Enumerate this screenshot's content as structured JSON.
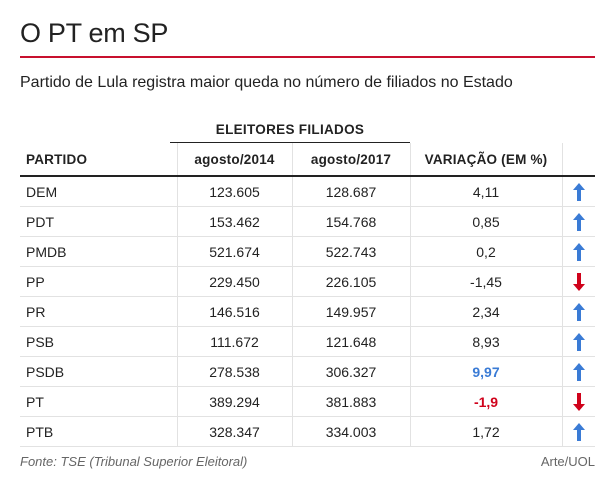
{
  "title": "O PT em SP",
  "subtitle": "Partido de Lula registra maior queda no número de filiados no Estado",
  "group_header": "ELEITORES FILIADOS",
  "columns": {
    "party": "PARTIDO",
    "aug2014": "agosto/2014",
    "aug2017": "agosto/2017",
    "variation": "VARIAÇÃO (EM %)"
  },
  "colors": {
    "accent": "#c8102e",
    "up": "#3a7bd5",
    "down": "#d0021b"
  },
  "chart_data": {
    "type": "table",
    "title": "O PT em SP",
    "subtitle": "Partido de Lula registra maior queda no número de filiados no Estado",
    "columns": [
      "PARTIDO",
      "agosto/2014",
      "agosto/2017",
      "VARIAÇÃO (EM %)"
    ],
    "rows": [
      {
        "party": "DEM",
        "aug2014": "123.605",
        "aug2017": "128.687",
        "variation": "4,11",
        "direction": "up",
        "highlight": ""
      },
      {
        "party": "PDT",
        "aug2014": "153.462",
        "aug2017": "154.768",
        "variation": "0,85",
        "direction": "up",
        "highlight": ""
      },
      {
        "party": "PMDB",
        "aug2014": "521.674",
        "aug2017": "522.743",
        "variation": "0,2",
        "direction": "up",
        "highlight": ""
      },
      {
        "party": "PP",
        "aug2014": "229.450",
        "aug2017": "226.105",
        "variation": "-1,45",
        "direction": "down",
        "highlight": ""
      },
      {
        "party": "PR",
        "aug2014": "146.516",
        "aug2017": "149.957",
        "variation": "2,34",
        "direction": "up",
        "highlight": ""
      },
      {
        "party": "PSB",
        "aug2014": "111.672",
        "aug2017": "121.648",
        "variation": "8,93",
        "direction": "up",
        "highlight": ""
      },
      {
        "party": "PSDB",
        "aug2014": "278.538",
        "aug2017": "306.327",
        "variation": "9,97",
        "direction": "up",
        "highlight": "up"
      },
      {
        "party": "PT",
        "aug2014": "389.294",
        "aug2017": "381.883",
        "variation": "-1,9",
        "direction": "down",
        "highlight": "down"
      },
      {
        "party": "PTB",
        "aug2014": "328.347",
        "aug2017": "334.003",
        "variation": "1,72",
        "direction": "up",
        "highlight": ""
      }
    ]
  },
  "icons": {
    "up": "arrow-up-icon",
    "down": "arrow-down-icon"
  },
  "source": "Fonte: TSE (Tribunal Superior Eleitoral)",
  "credit": "Arte/UOL"
}
